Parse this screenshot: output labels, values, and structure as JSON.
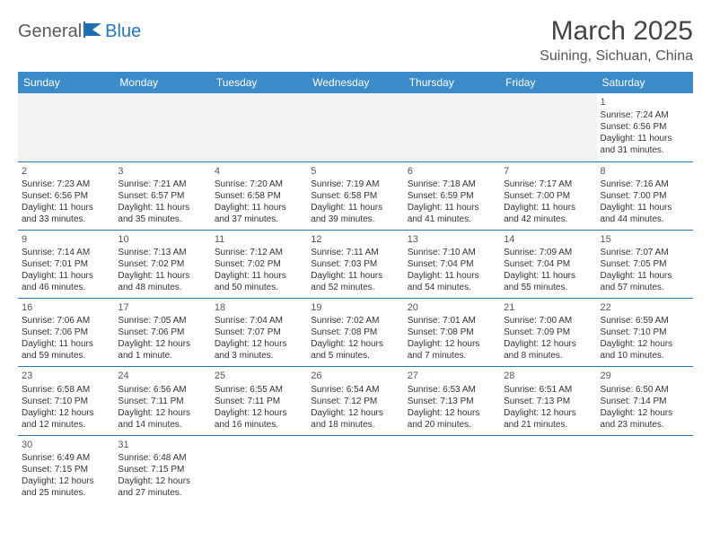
{
  "logo": {
    "text1": "General",
    "text2": "Blue"
  },
  "title": "March 2025",
  "location": "Suining, Sichuan, China",
  "colors": {
    "header_bg": "#3b8bc9",
    "border": "#2176c1",
    "empty_bg": "#f2f2f2",
    "text": "#333333"
  },
  "days_of_week": [
    "Sunday",
    "Monday",
    "Tuesday",
    "Wednesday",
    "Thursday",
    "Friday",
    "Saturday"
  ],
  "cells": [
    {
      "day": "1",
      "sunrise": "Sunrise: 7:24 AM",
      "sunset": "Sunset: 6:56 PM",
      "dl1": "Daylight: 11 hours",
      "dl2": "and 31 minutes."
    },
    {
      "day": "2",
      "sunrise": "Sunrise: 7:23 AM",
      "sunset": "Sunset: 6:56 PM",
      "dl1": "Daylight: 11 hours",
      "dl2": "and 33 minutes."
    },
    {
      "day": "3",
      "sunrise": "Sunrise: 7:21 AM",
      "sunset": "Sunset: 6:57 PM",
      "dl1": "Daylight: 11 hours",
      "dl2": "and 35 minutes."
    },
    {
      "day": "4",
      "sunrise": "Sunrise: 7:20 AM",
      "sunset": "Sunset: 6:58 PM",
      "dl1": "Daylight: 11 hours",
      "dl2": "and 37 minutes."
    },
    {
      "day": "5",
      "sunrise": "Sunrise: 7:19 AM",
      "sunset": "Sunset: 6:58 PM",
      "dl1": "Daylight: 11 hours",
      "dl2": "and 39 minutes."
    },
    {
      "day": "6",
      "sunrise": "Sunrise: 7:18 AM",
      "sunset": "Sunset: 6:59 PM",
      "dl1": "Daylight: 11 hours",
      "dl2": "and 41 minutes."
    },
    {
      "day": "7",
      "sunrise": "Sunrise: 7:17 AM",
      "sunset": "Sunset: 7:00 PM",
      "dl1": "Daylight: 11 hours",
      "dl2": "and 42 minutes."
    },
    {
      "day": "8",
      "sunrise": "Sunrise: 7:16 AM",
      "sunset": "Sunset: 7:00 PM",
      "dl1": "Daylight: 11 hours",
      "dl2": "and 44 minutes."
    },
    {
      "day": "9",
      "sunrise": "Sunrise: 7:14 AM",
      "sunset": "Sunset: 7:01 PM",
      "dl1": "Daylight: 11 hours",
      "dl2": "and 46 minutes."
    },
    {
      "day": "10",
      "sunrise": "Sunrise: 7:13 AM",
      "sunset": "Sunset: 7:02 PM",
      "dl1": "Daylight: 11 hours",
      "dl2": "and 48 minutes."
    },
    {
      "day": "11",
      "sunrise": "Sunrise: 7:12 AM",
      "sunset": "Sunset: 7:02 PM",
      "dl1": "Daylight: 11 hours",
      "dl2": "and 50 minutes."
    },
    {
      "day": "12",
      "sunrise": "Sunrise: 7:11 AM",
      "sunset": "Sunset: 7:03 PM",
      "dl1": "Daylight: 11 hours",
      "dl2": "and 52 minutes."
    },
    {
      "day": "13",
      "sunrise": "Sunrise: 7:10 AM",
      "sunset": "Sunset: 7:04 PM",
      "dl1": "Daylight: 11 hours",
      "dl2": "and 54 minutes."
    },
    {
      "day": "14",
      "sunrise": "Sunrise: 7:09 AM",
      "sunset": "Sunset: 7:04 PM",
      "dl1": "Daylight: 11 hours",
      "dl2": "and 55 minutes."
    },
    {
      "day": "15",
      "sunrise": "Sunrise: 7:07 AM",
      "sunset": "Sunset: 7:05 PM",
      "dl1": "Daylight: 11 hours",
      "dl2": "and 57 minutes."
    },
    {
      "day": "16",
      "sunrise": "Sunrise: 7:06 AM",
      "sunset": "Sunset: 7:06 PM",
      "dl1": "Daylight: 11 hours",
      "dl2": "and 59 minutes."
    },
    {
      "day": "17",
      "sunrise": "Sunrise: 7:05 AM",
      "sunset": "Sunset: 7:06 PM",
      "dl1": "Daylight: 12 hours",
      "dl2": "and 1 minute."
    },
    {
      "day": "18",
      "sunrise": "Sunrise: 7:04 AM",
      "sunset": "Sunset: 7:07 PM",
      "dl1": "Daylight: 12 hours",
      "dl2": "and 3 minutes."
    },
    {
      "day": "19",
      "sunrise": "Sunrise: 7:02 AM",
      "sunset": "Sunset: 7:08 PM",
      "dl1": "Daylight: 12 hours",
      "dl2": "and 5 minutes."
    },
    {
      "day": "20",
      "sunrise": "Sunrise: 7:01 AM",
      "sunset": "Sunset: 7:08 PM",
      "dl1": "Daylight: 12 hours",
      "dl2": "and 7 minutes."
    },
    {
      "day": "21",
      "sunrise": "Sunrise: 7:00 AM",
      "sunset": "Sunset: 7:09 PM",
      "dl1": "Daylight: 12 hours",
      "dl2": "and 8 minutes."
    },
    {
      "day": "22",
      "sunrise": "Sunrise: 6:59 AM",
      "sunset": "Sunset: 7:10 PM",
      "dl1": "Daylight: 12 hours",
      "dl2": "and 10 minutes."
    },
    {
      "day": "23",
      "sunrise": "Sunrise: 6:58 AM",
      "sunset": "Sunset: 7:10 PM",
      "dl1": "Daylight: 12 hours",
      "dl2": "and 12 minutes."
    },
    {
      "day": "24",
      "sunrise": "Sunrise: 6:56 AM",
      "sunset": "Sunset: 7:11 PM",
      "dl1": "Daylight: 12 hours",
      "dl2": "and 14 minutes."
    },
    {
      "day": "25",
      "sunrise": "Sunrise: 6:55 AM",
      "sunset": "Sunset: 7:11 PM",
      "dl1": "Daylight: 12 hours",
      "dl2": "and 16 minutes."
    },
    {
      "day": "26",
      "sunrise": "Sunrise: 6:54 AM",
      "sunset": "Sunset: 7:12 PM",
      "dl1": "Daylight: 12 hours",
      "dl2": "and 18 minutes."
    },
    {
      "day": "27",
      "sunrise": "Sunrise: 6:53 AM",
      "sunset": "Sunset: 7:13 PM",
      "dl1": "Daylight: 12 hours",
      "dl2": "and 20 minutes."
    },
    {
      "day": "28",
      "sunrise": "Sunrise: 6:51 AM",
      "sunset": "Sunset: 7:13 PM",
      "dl1": "Daylight: 12 hours",
      "dl2": "and 21 minutes."
    },
    {
      "day": "29",
      "sunrise": "Sunrise: 6:50 AM",
      "sunset": "Sunset: 7:14 PM",
      "dl1": "Daylight: 12 hours",
      "dl2": "and 23 minutes."
    },
    {
      "day": "30",
      "sunrise": "Sunrise: 6:49 AM",
      "sunset": "Sunset: 7:15 PM",
      "dl1": "Daylight: 12 hours",
      "dl2": "and 25 minutes."
    },
    {
      "day": "31",
      "sunrise": "Sunrise: 6:48 AM",
      "sunset": "Sunset: 7:15 PM",
      "dl1": "Daylight: 12 hours",
      "dl2": "and 27 minutes."
    }
  ]
}
